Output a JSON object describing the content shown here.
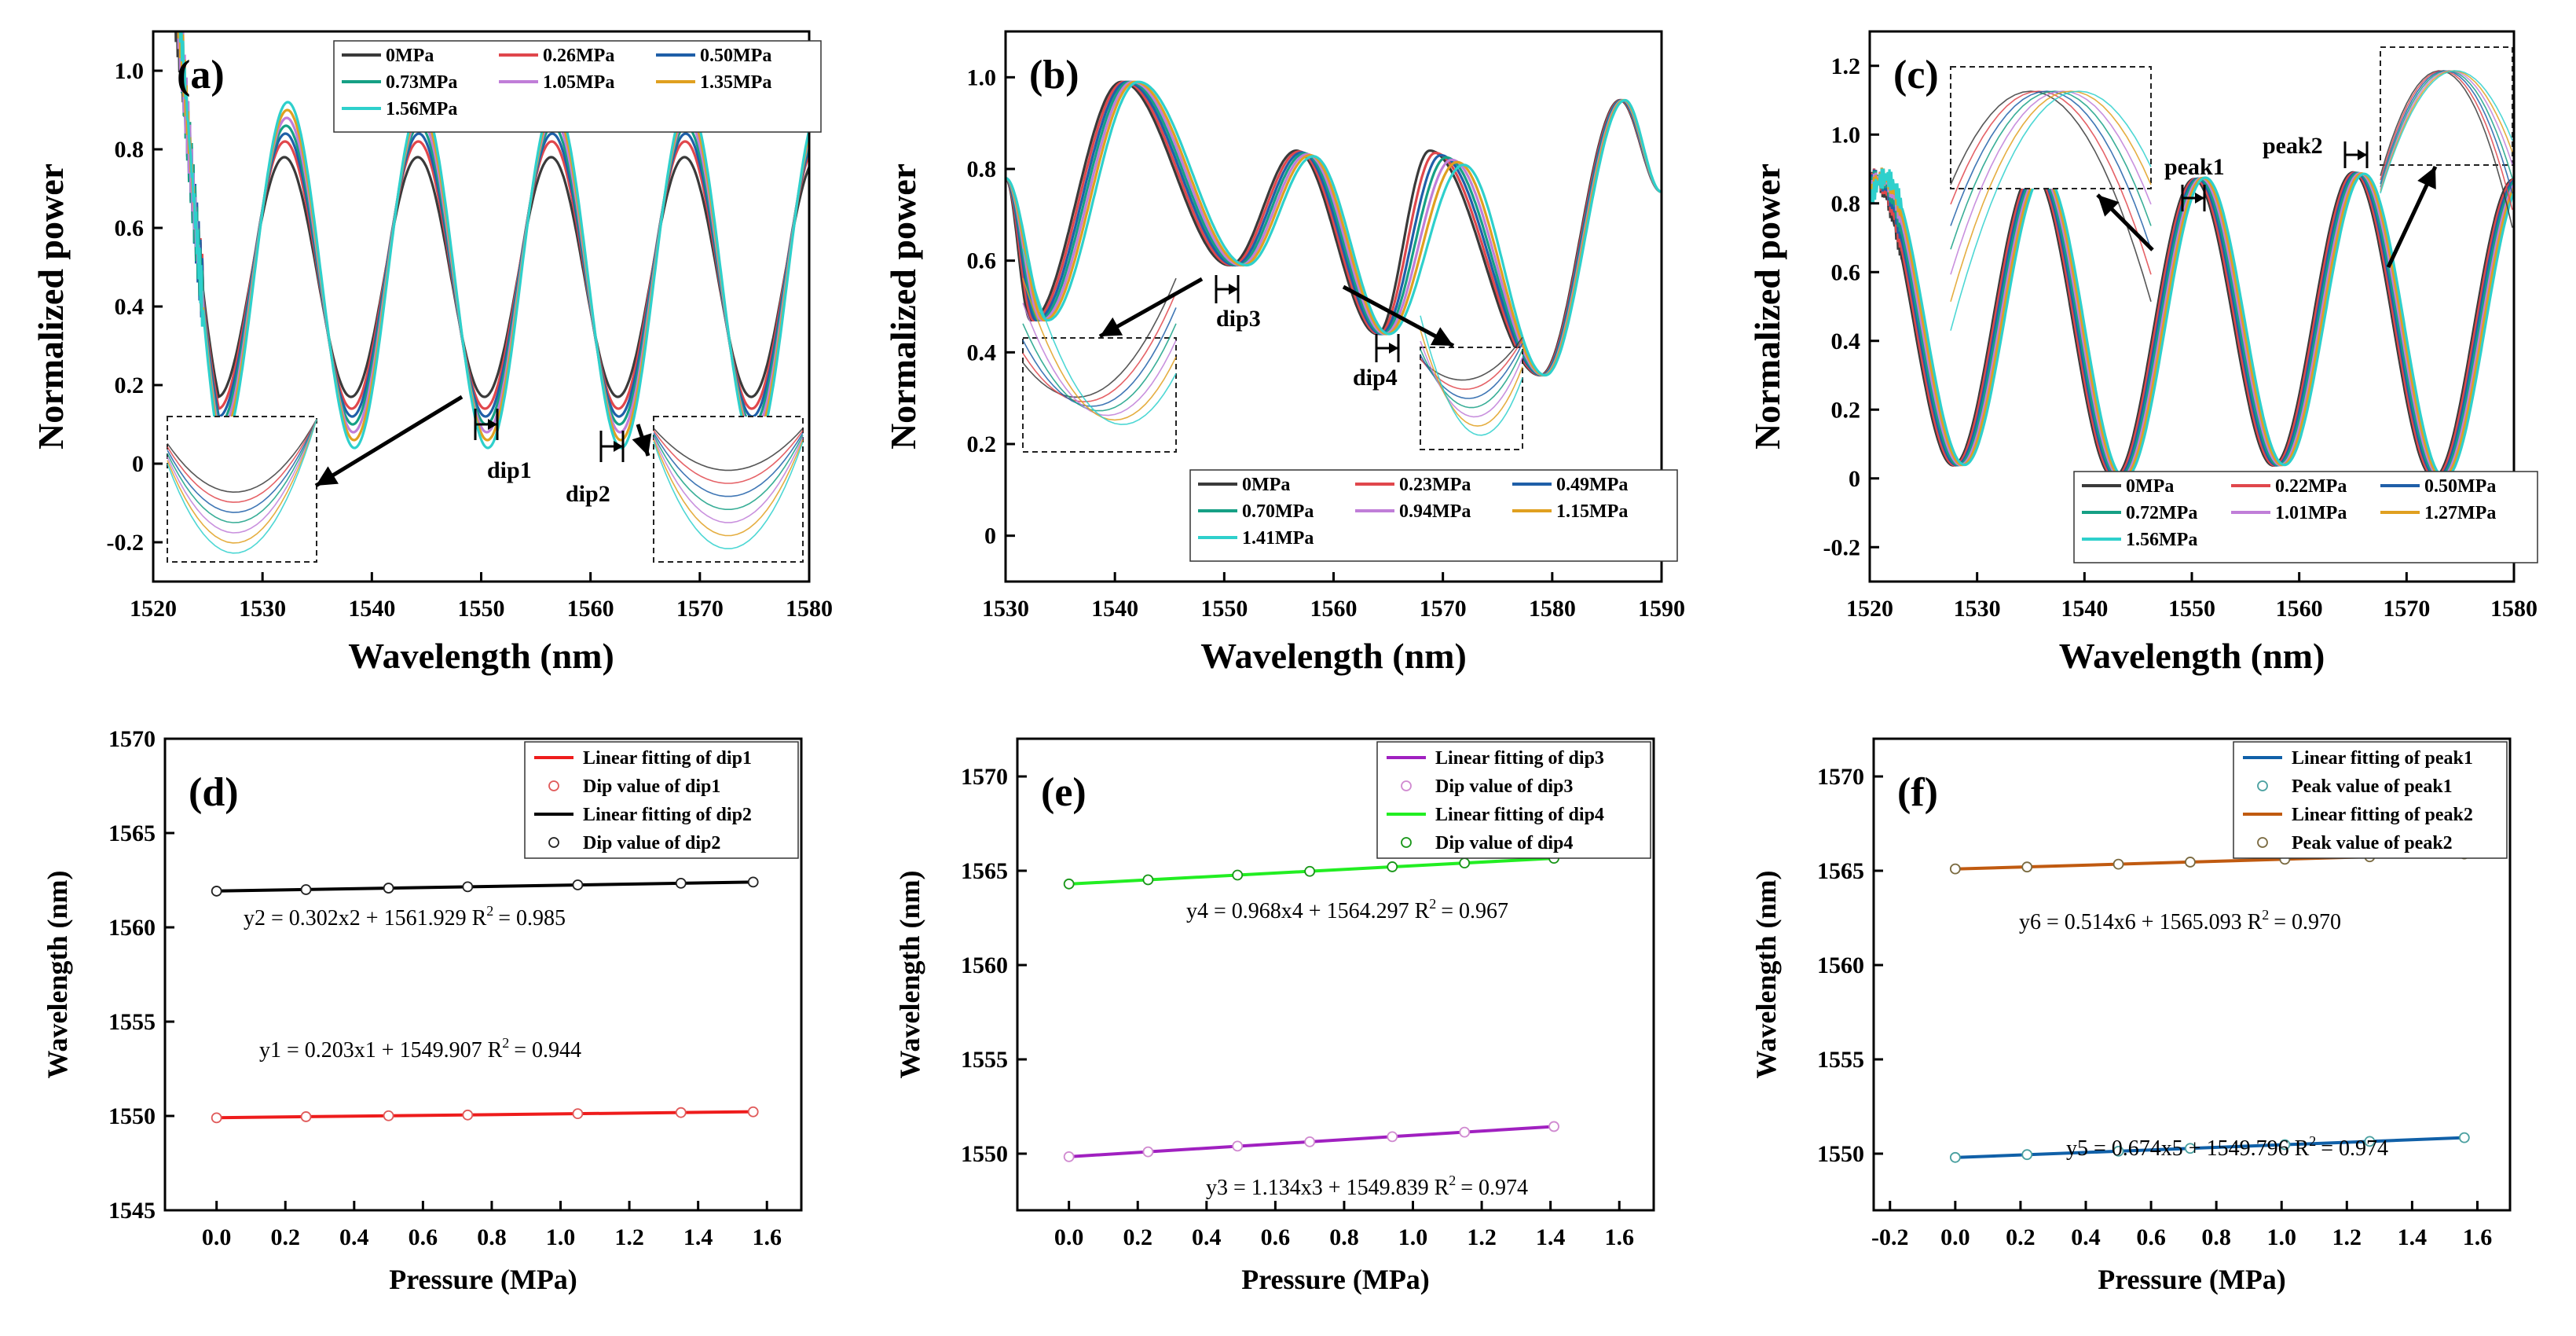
{
  "chart_data": [
    {
      "id": "a",
      "type": "line",
      "panel_label": "(a)",
      "xlabel": "Wavelength (nm)",
      "ylabel": "Normalized power",
      "xlim": [
        1520,
        1580
      ],
      "ylim": [
        -0.3,
        1.1
      ],
      "xticks": [
        "1520",
        "1530",
        "1540",
        "1550",
        "1560",
        "1570",
        "1580"
      ],
      "yticks": [
        "-0.2",
        "0",
        "0.2",
        "0.4",
        "0.6",
        "0.8",
        "1.0"
      ],
      "legend_position": "top-right",
      "series": [
        {
          "name": "0MPa",
          "color": "#3a3a3a",
          "shift": 0.0,
          "min": 0.17,
          "max": 0.78,
          "period": 12.2,
          "phase": 1525.9
        },
        {
          "name": "0.26MPa",
          "color": "#e0474c",
          "shift": 0.05,
          "min": 0.14,
          "max": 0.82,
          "period": 12.2,
          "phase": 1525.9
        },
        {
          "name": "0.50MPa",
          "color": "#1f5fa8",
          "shift": 0.1,
          "min": 0.12,
          "max": 0.84,
          "period": 12.2,
          "phase": 1525.9
        },
        {
          "name": "0.73MPa",
          "color": "#16a085",
          "shift": 0.15,
          "min": 0.1,
          "max": 0.86,
          "period": 12.2,
          "phase": 1525.9
        },
        {
          "name": "1.05MPa",
          "color": "#c07ed8",
          "shift": 0.21,
          "min": 0.08,
          "max": 0.88,
          "period": 12.2,
          "phase": 1525.9
        },
        {
          "name": "1.35MPa",
          "color": "#e0a020",
          "shift": 0.27,
          "min": 0.06,
          "max": 0.9,
          "period": 12.2,
          "phase": 1525.9
        },
        {
          "name": "1.56MPa",
          "color": "#2ed0cc",
          "shift": 0.31,
          "min": 0.04,
          "max": 0.92,
          "period": 12.2,
          "phase": 1525.9
        }
      ],
      "annotations": [
        "dip1",
        "dip2"
      ]
    },
    {
      "id": "b",
      "type": "line",
      "panel_label": "(b)",
      "xlabel": "Wavelength (nm)",
      "ylabel": "Normalized power",
      "xlim": [
        1530,
        1590
      ],
      "ylim": [
        -0.1,
        1.1
      ],
      "xticks": [
        "1530",
        "1540",
        "1550",
        "1560",
        "1570",
        "1580",
        "1590"
      ],
      "yticks": [
        "0",
        "0.2",
        "0.4",
        "0.6",
        "0.8",
        "1.0"
      ],
      "legend_position": "bottom-right",
      "series": [
        {
          "name": "0MPa",
          "color": "#3a3a3a",
          "shift": 0.0
        },
        {
          "name": "0.23MPa",
          "color": "#e0474c",
          "shift": 0.25
        },
        {
          "name": "0.49MPa",
          "color": "#1f5fa8",
          "shift": 0.5
        },
        {
          "name": "0.70MPa",
          "color": "#16a085",
          "shift": 0.75
        },
        {
          "name": "0.94MPa",
          "color": "#c07ed8",
          "shift": 1.0
        },
        {
          "name": "1.15MPa",
          "color": "#e0a020",
          "shift": 1.25
        },
        {
          "name": "1.41MPa",
          "color": "#2ed0cc",
          "shift": 1.55
        }
      ],
      "annotations": [
        "dip3",
        "dip4"
      ]
    },
    {
      "id": "c",
      "type": "line",
      "panel_label": "(c)",
      "xlabel": "Wavelength (nm)",
      "ylabel": "Normalized power",
      "xlim": [
        1520,
        1580
      ],
      "ylim": [
        -0.3,
        1.3
      ],
      "xticks": [
        "1520",
        "1530",
        "1540",
        "1550",
        "1560",
        "1570",
        "1580"
      ],
      "yticks": [
        "-0.2",
        "0",
        "0.2",
        "0.4",
        "0.6",
        "0.8",
        "1.0",
        "1.2"
      ],
      "legend_position": "bottom-right",
      "series": [
        {
          "name": "0MPa",
          "color": "#3a3a3a",
          "shift": 0.0
        },
        {
          "name": "0.22MPa",
          "color": "#e0474c",
          "shift": 0.15
        },
        {
          "name": "0.50MPa",
          "color": "#1f5fa8",
          "shift": 0.33
        },
        {
          "name": "0.72MPa",
          "color": "#16a085",
          "shift": 0.48
        },
        {
          "name": "1.01MPa",
          "color": "#c07ed8",
          "shift": 0.68
        },
        {
          "name": "1.27MPa",
          "color": "#e0a020",
          "shift": 0.85
        },
        {
          "name": "1.56MPa",
          "color": "#2ed0cc",
          "shift": 1.05
        }
      ],
      "annotations": [
        "peak1",
        "peak2"
      ]
    },
    {
      "id": "d",
      "type": "scatter",
      "panel_label": "(d)",
      "xlabel": "Pressure (MPa)",
      "ylabel": "Wavelength (nm)",
      "xlim": [
        -0.15,
        1.7
      ],
      "ylim": [
        1545,
        1570
      ],
      "xticks": [
        "0.0",
        "0.2",
        "0.4",
        "0.6",
        "0.8",
        "1.0",
        "1.2",
        "1.4",
        "1.6"
      ],
      "yticks": [
        "1545",
        "1550",
        "1555",
        "1560",
        "1565",
        "1570"
      ],
      "legend_position": "top-right",
      "legend": [
        "Linear fitting of dip1",
        "Dip value of dip1",
        "Linear fitting of dip2",
        "Dip value of dip2"
      ],
      "series": [
        {
          "name": "dip1",
          "line_color": "#ee1c1c",
          "marker_color": "#e05a5a",
          "x": [
            0,
            0.26,
            0.5,
            0.73,
            1.05,
            1.35,
            1.56
          ],
          "y": [
            1549.9,
            1549.96,
            1550.01,
            1550.05,
            1550.12,
            1550.18,
            1550.22
          ],
          "slope": 0.203,
          "intercept": 1549.907,
          "equation": "y1 = 0.203x1 + 1549.907  R",
          "r2": "= 0.944"
        },
        {
          "name": "dip2",
          "line_color": "#000000",
          "marker_color": "#222222",
          "x": [
            0,
            0.26,
            0.5,
            0.73,
            1.05,
            1.35,
            1.56
          ],
          "y": [
            1561.92,
            1562.0,
            1562.08,
            1562.15,
            1562.25,
            1562.34,
            1562.4
          ],
          "slope": 0.302,
          "intercept": 1561.929,
          "equation": "y2 = 0.302x2 + 1561.929  R",
          "r2": "= 0.985"
        }
      ]
    },
    {
      "id": "e",
      "type": "scatter",
      "panel_label": "(e)",
      "xlabel": "Pressure (MPa)",
      "ylabel": "Wavelength (nm)",
      "xlim": [
        -0.15,
        1.7
      ],
      "ylim": [
        1547,
        1572
      ],
      "xticks": [
        "0.0",
        "0.2",
        "0.4",
        "0.6",
        "0.8",
        "1.0",
        "1.2",
        "1.4",
        "1.6"
      ],
      "yticks": [
        "1550",
        "1555",
        "1560",
        "1565",
        "1570"
      ],
      "legend_position": "top-right",
      "legend": [
        "Linear fitting of dip3",
        "Dip value of dip3",
        "Linear fitting of dip4",
        "Dip value of dip4"
      ],
      "series": [
        {
          "name": "dip3",
          "line_color": "#a020c0",
          "marker_color": "#d08ad0",
          "x": [
            0,
            0.23,
            0.49,
            0.7,
            0.94,
            1.15,
            1.41
          ],
          "y": [
            1549.84,
            1550.1,
            1550.4,
            1550.63,
            1550.9,
            1551.14,
            1551.44
          ],
          "slope": 1.134,
          "intercept": 1549.839,
          "equation": "y3 = 1.134x3 + 1549.839  R",
          "r2": "= 0.974"
        },
        {
          "name": "dip4",
          "line_color": "#22ee22",
          "marker_color": "#189618",
          "x": [
            0,
            0.23,
            0.49,
            0.7,
            0.94,
            1.15,
            1.41
          ],
          "y": [
            1564.3,
            1564.52,
            1564.77,
            1564.97,
            1565.21,
            1565.41,
            1565.66
          ],
          "slope": 0.968,
          "intercept": 1564.297,
          "equation": "y4 = 0.968x4 + 1564.297  R",
          "r2": "= 0.967"
        }
      ]
    },
    {
      "id": "f",
      "type": "scatter",
      "panel_label": "(f)",
      "xlabel": "Pressure (MPa)",
      "ylabel": "Wavelength (nm)",
      "xlim": [
        -0.25,
        1.7
      ],
      "ylim": [
        1547,
        1572
      ],
      "xticks": [
        "-0.2",
        "0.0",
        "0.2",
        "0.4",
        "0.6",
        "0.8",
        "1.0",
        "1.2",
        "1.4",
        "1.6"
      ],
      "yticks": [
        "1550",
        "1555",
        "1560",
        "1565",
        "1570"
      ],
      "legend_position": "top-right",
      "legend": [
        "Linear fitting of peak1",
        "Peak value of peak1",
        "Linear fitting of peak2",
        "Peak value of peak2"
      ],
      "series": [
        {
          "name": "peak1",
          "line_color": "#1060a8",
          "marker_color": "#4aa0a0",
          "x": [
            0,
            0.22,
            0.5,
            0.72,
            1.01,
            1.27,
            1.56
          ],
          "y": [
            1549.8,
            1549.95,
            1550.13,
            1550.28,
            1550.48,
            1550.65,
            1550.85
          ],
          "slope": 0.674,
          "intercept": 1549.796,
          "equation": "y5 = 0.674x5 + 1549.796  R",
          "r2": "= 0.974"
        },
        {
          "name": "peak2",
          "line_color": "#c05a10",
          "marker_color": "#7a6a40",
          "x": [
            0,
            0.22,
            0.5,
            0.72,
            1.01,
            1.27,
            1.56
          ],
          "y": [
            1565.1,
            1565.2,
            1565.35,
            1565.46,
            1565.61,
            1565.74,
            1565.89
          ],
          "slope": 0.514,
          "intercept": 1565.093,
          "equation": "y6 = 0.514x6 + 1565.093  R",
          "r2": "= 0.970"
        }
      ]
    }
  ]
}
